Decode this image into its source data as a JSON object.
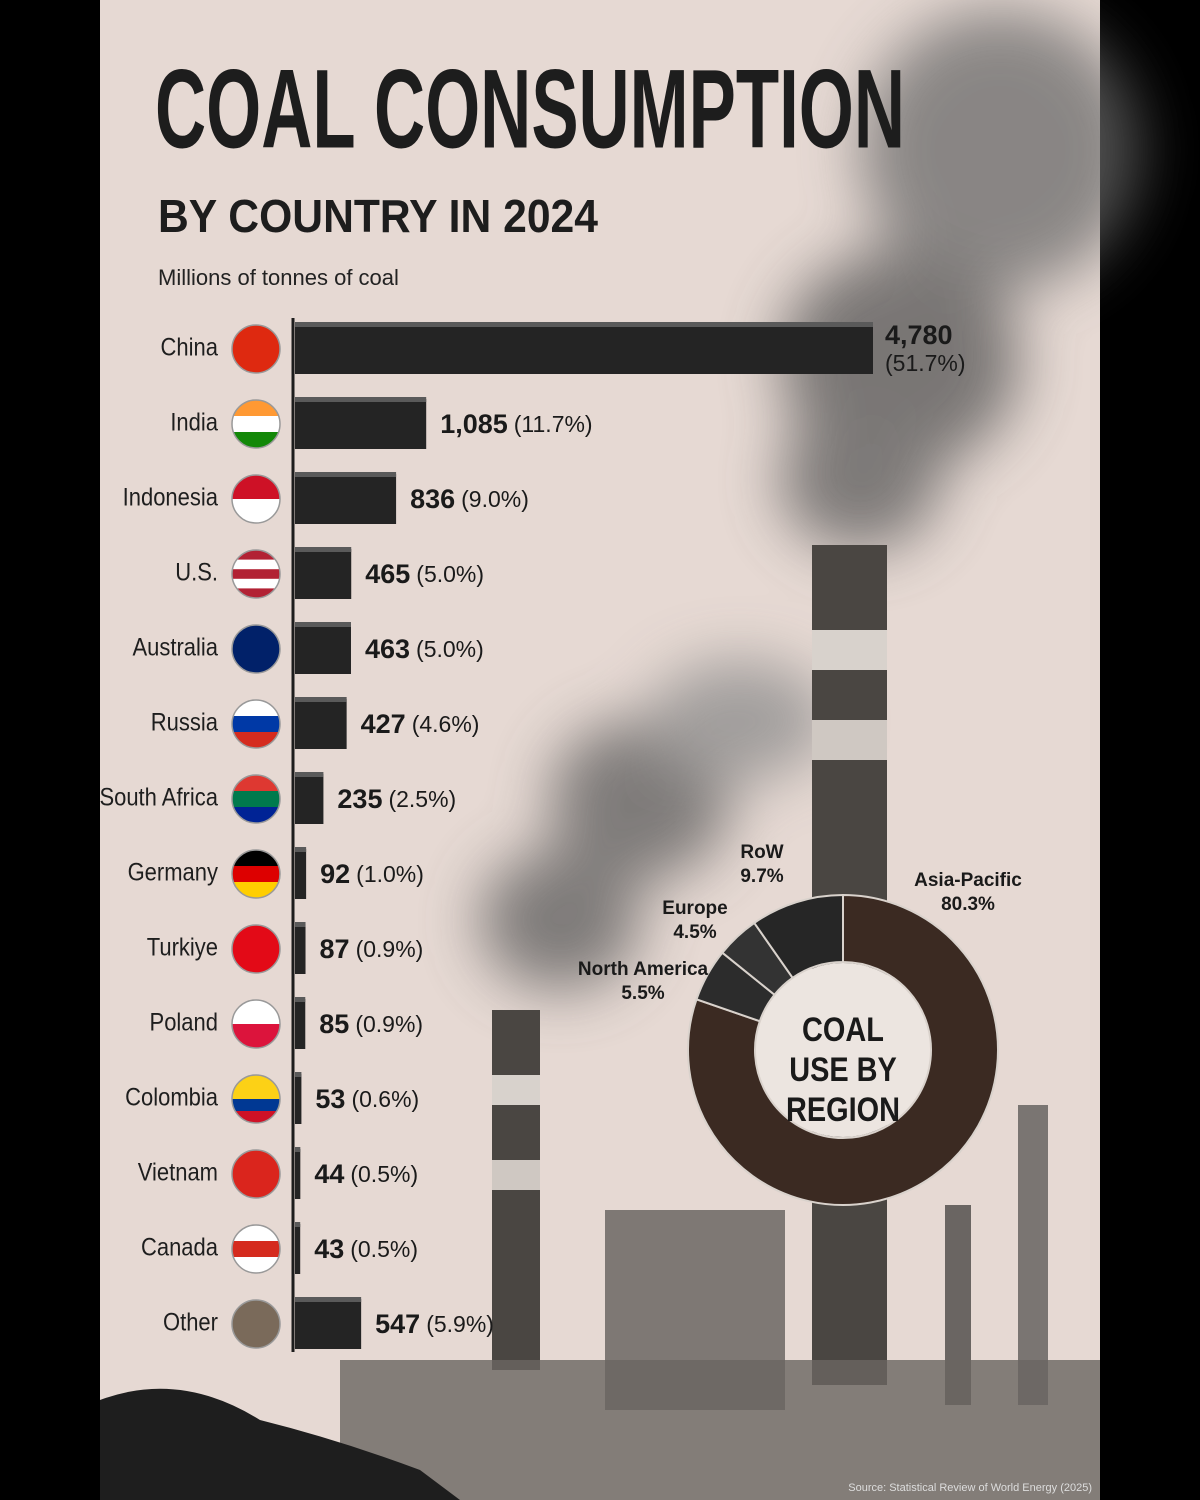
{
  "chart_data": [
    {
      "type": "bar",
      "orientation": "horizontal",
      "title": "COAL CONSUMPTION",
      "subtitle": "BY COUNTRY IN 2024",
      "axis_label": "Millions of tonnes of coal",
      "categories": [
        "China",
        "India",
        "Indonesia",
        "U.S.",
        "Australia",
        "Russia",
        "South Africa",
        "Germany",
        "Turkiye",
        "Poland",
        "Colombia",
        "Vietnam",
        "Canada",
        "Other"
      ],
      "values": [
        4780,
        1085,
        836,
        465,
        463,
        427,
        235,
        92,
        87,
        85,
        53,
        44,
        43,
        547
      ],
      "value_labels": [
        "4,780",
        "1,085",
        "836",
        "465",
        "463",
        "427",
        "235",
        "92",
        "87",
        "85",
        "53",
        "44",
        "43",
        "547"
      ],
      "share_labels": [
        "(51.7%)",
        "(11.7%)",
        "(9.0%)",
        "(5.0%)",
        "(5.0%)",
        "(4.6%)",
        "(2.5%)",
        "(1.0%)",
        "(0.9%)",
        "(0.9%)",
        "(0.6%)",
        "(0.5%)",
        "(0.5%)",
        "(5.9%)"
      ],
      "color": "#242424",
      "source": "Source: Statistical Review of World Energy (2025)"
    },
    {
      "type": "donut",
      "title": "COAL USE BY REGION",
      "categories": [
        "Asia-Pacific",
        "North America",
        "Europe",
        "RoW"
      ],
      "values": [
        80.3,
        5.5,
        4.5,
        9.7
      ],
      "value_labels": [
        "80.3%",
        "5.5%",
        "4.5%",
        "9.7%"
      ],
      "colors": [
        "#3b2a22",
        "#2c2c2c",
        "#333333",
        "#262626"
      ]
    }
  ]
}
